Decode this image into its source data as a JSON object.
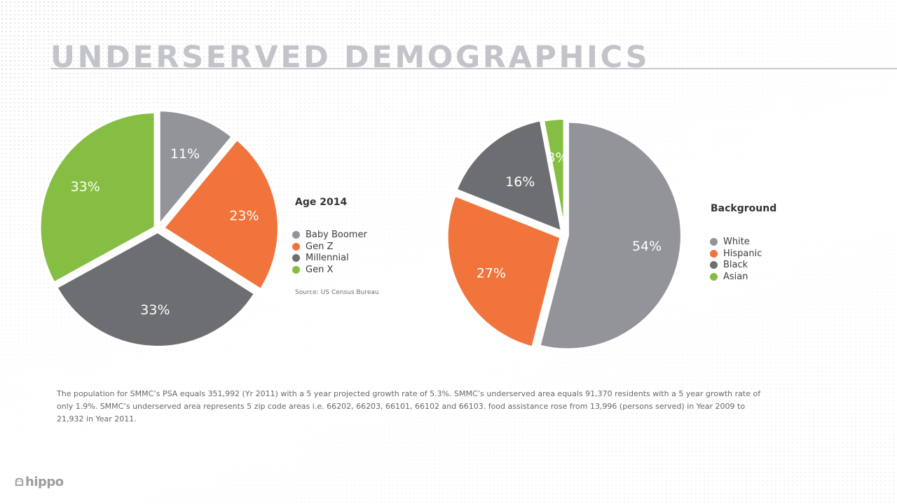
{
  "page": {
    "title": "UNDERSERVED DEMOGRAPHICS"
  },
  "chart_data": [
    {
      "type": "pie",
      "title": "Age 2014",
      "categories": [
        "Baby Boomer",
        "Gen Z",
        "Millennial",
        "Gen X"
      ],
      "values": [
        11,
        23,
        33,
        33
      ],
      "labels": [
        "11%",
        "23%",
        "33%",
        "33%"
      ],
      "colors": [
        "#939499",
        "#f0743b",
        "#6d6e72",
        "#85be42"
      ],
      "source": "Source: US Census Bureau",
      "legend_position": "right"
    },
    {
      "type": "pie",
      "title": "Background",
      "categories": [
        "White",
        "Hispanic",
        "Black",
        "Asian"
      ],
      "values": [
        54,
        27,
        16,
        3
      ],
      "labels": [
        "54%",
        "27%",
        "16%",
        "3%"
      ],
      "colors": [
        "#939499",
        "#f0743b",
        "#6d6e72",
        "#85be42"
      ],
      "legend_position": "right"
    }
  ],
  "body": {
    "paragraph": "The population for SMMC’s PSA equals 351,992 (Yr 2011) with a 5 year projected growth rate of 5.3%. SMMC’s underserved area equals 91,370 residents with a 5 year growth rate of only 1.9%. SMMC’s underserved area represents 5 zip code areas i.e. 66202, 66203, 66101, 66102 and 66103. food assistance rose from 13,996 (persons served) in Year 2009 to 21,932 in Year 2011."
  },
  "logo": {
    "text": "hippo",
    "icon": "hippo-logo-icon"
  }
}
